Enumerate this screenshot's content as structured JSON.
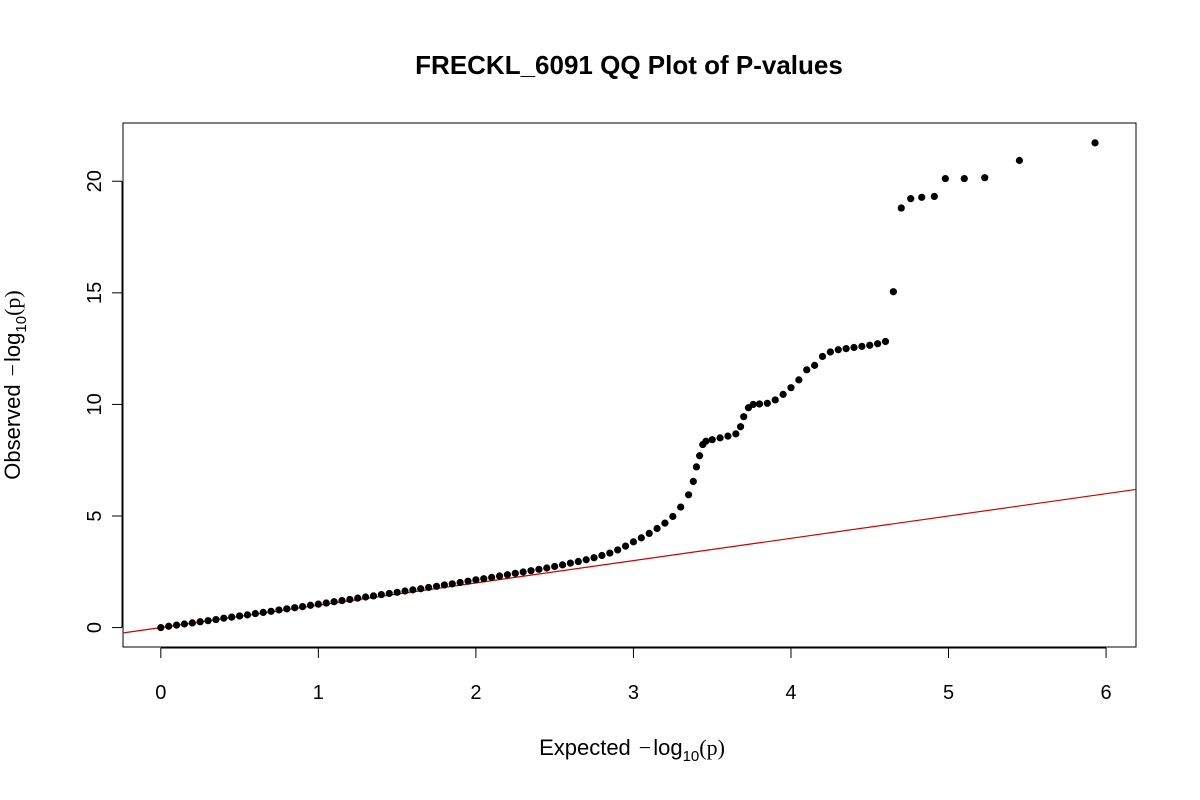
{
  "chart_data": {
    "type": "scatter",
    "title": "FRECKL_6091 QQ Plot of P-values",
    "xlabel": {
      "prefix": "Expected",
      "minus": "−",
      "log": "log",
      "base": "10",
      "arg": "(p)"
    },
    "ylabel": {
      "prefix": "Observed",
      "minus": "−",
      "log": "log",
      "base": "10",
      "arg": "(p)"
    },
    "xlim": [
      -0.24,
      6.19
    ],
    "ylim": [
      -0.87,
      22.61
    ],
    "x_ticks": [
      "0",
      "1",
      "2",
      "3",
      "4",
      "5",
      "6"
    ],
    "y_ticks": [
      "0",
      "5",
      "10",
      "15",
      "20"
    ],
    "reference_line": {
      "slope": 1,
      "intercept": 0,
      "color": "#cc0000"
    },
    "point_color": "#000000",
    "grid": false,
    "legend": "none",
    "series": [
      {
        "points": [
          [
            0.0,
            0.0
          ],
          [
            0.05,
            0.06
          ],
          [
            0.1,
            0.11
          ],
          [
            0.15,
            0.16
          ],
          [
            0.2,
            0.21
          ],
          [
            0.25,
            0.26
          ],
          [
            0.3,
            0.31
          ],
          [
            0.35,
            0.36
          ],
          [
            0.4,
            0.42
          ],
          [
            0.45,
            0.47
          ],
          [
            0.5,
            0.52
          ],
          [
            0.55,
            0.57
          ],
          [
            0.6,
            0.63
          ],
          [
            0.65,
            0.68
          ],
          [
            0.7,
            0.73
          ],
          [
            0.75,
            0.79
          ],
          [
            0.8,
            0.84
          ],
          [
            0.85,
            0.89
          ],
          [
            0.9,
            0.94
          ],
          [
            0.95,
            1.0
          ],
          [
            1.0,
            1.05
          ],
          [
            1.05,
            1.1
          ],
          [
            1.1,
            1.16
          ],
          [
            1.15,
            1.21
          ],
          [
            1.2,
            1.26
          ],
          [
            1.25,
            1.32
          ],
          [
            1.3,
            1.37
          ],
          [
            1.35,
            1.42
          ],
          [
            1.4,
            1.48
          ],
          [
            1.45,
            1.53
          ],
          [
            1.5,
            1.58
          ],
          [
            1.55,
            1.64
          ],
          [
            1.6,
            1.69
          ],
          [
            1.65,
            1.74
          ],
          [
            1.7,
            1.8
          ],
          [
            1.75,
            1.85
          ],
          [
            1.8,
            1.91
          ],
          [
            1.85,
            1.96
          ],
          [
            1.9,
            2.02
          ],
          [
            1.95,
            2.08
          ],
          [
            2.0,
            2.14
          ],
          [
            2.05,
            2.19
          ],
          [
            2.1,
            2.25
          ],
          [
            2.15,
            2.31
          ],
          [
            2.2,
            2.37
          ],
          [
            2.25,
            2.43
          ],
          [
            2.3,
            2.49
          ],
          [
            2.35,
            2.55
          ],
          [
            2.4,
            2.61
          ],
          [
            2.45,
            2.67
          ],
          [
            2.5,
            2.74
          ],
          [
            2.55,
            2.81
          ],
          [
            2.6,
            2.89
          ],
          [
            2.65,
            2.96
          ],
          [
            2.7,
            3.04
          ],
          [
            2.75,
            3.13
          ],
          [
            2.8,
            3.23
          ],
          [
            2.85,
            3.34
          ],
          [
            2.9,
            3.48
          ],
          [
            2.95,
            3.65
          ],
          [
            3.0,
            3.84
          ],
          [
            3.05,
            4.02
          ],
          [
            3.1,
            4.22
          ],
          [
            3.15,
            4.44
          ],
          [
            3.2,
            4.68
          ],
          [
            3.25,
            4.98
          ],
          [
            3.3,
            5.4
          ],
          [
            3.35,
            5.95
          ],
          [
            3.38,
            6.55
          ],
          [
            3.4,
            7.2
          ],
          [
            3.42,
            7.7
          ],
          [
            3.44,
            8.2
          ],
          [
            3.46,
            8.35
          ],
          [
            3.5,
            8.42
          ],
          [
            3.55,
            8.5
          ],
          [
            3.6,
            8.58
          ],
          [
            3.65,
            8.68
          ],
          [
            3.68,
            9.0
          ],
          [
            3.7,
            9.45
          ],
          [
            3.73,
            9.85
          ],
          [
            3.76,
            10.0
          ],
          [
            3.8,
            10.02
          ],
          [
            3.85,
            10.05
          ],
          [
            3.9,
            10.2
          ],
          [
            3.95,
            10.45
          ],
          [
            4.0,
            10.75
          ],
          [
            4.05,
            11.1
          ],
          [
            4.1,
            11.55
          ],
          [
            4.15,
            11.75
          ],
          [
            4.2,
            12.15
          ],
          [
            4.25,
            12.35
          ],
          [
            4.3,
            12.45
          ],
          [
            4.35,
            12.5
          ],
          [
            4.4,
            12.55
          ],
          [
            4.45,
            12.6
          ],
          [
            4.5,
            12.65
          ],
          [
            4.55,
            12.72
          ],
          [
            4.6,
            12.82
          ],
          [
            4.65,
            15.05
          ],
          [
            4.7,
            18.8
          ],
          [
            4.76,
            19.22
          ],
          [
            4.83,
            19.28
          ],
          [
            4.91,
            19.32
          ],
          [
            4.98,
            20.12
          ],
          [
            5.1,
            20.12
          ],
          [
            5.23,
            20.16
          ],
          [
            5.45,
            20.93
          ],
          [
            5.93,
            21.72
          ]
        ]
      }
    ]
  }
}
